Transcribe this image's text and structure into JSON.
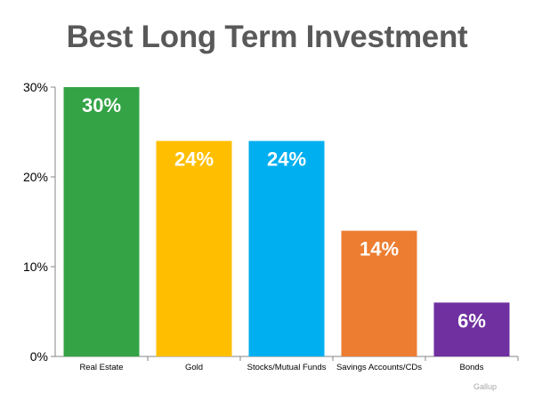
{
  "chart_data": {
    "type": "bar",
    "title": "Best Long Term Investment",
    "categories": [
      "Real Estate",
      "Gold",
      "Stocks/Mutual Funds",
      "Savings Accounts/CDs",
      "Bonds"
    ],
    "values": [
      30,
      24,
      24,
      14,
      6
    ],
    "data_labels": [
      "30%",
      "24%",
      "24%",
      "14%",
      "6%"
    ],
    "colors": [
      "#33a345",
      "#ffbf00",
      "#00aff0",
      "#ed7d31",
      "#7030a0"
    ],
    "ylim": [
      0,
      30
    ],
    "yticks": [
      0,
      10,
      20,
      30
    ],
    "ytick_labels": [
      "0%",
      "10%",
      "20%",
      "30%"
    ],
    "xlabel": "",
    "ylabel": "",
    "grid": false,
    "legend": "none"
  },
  "source": "Gallup"
}
